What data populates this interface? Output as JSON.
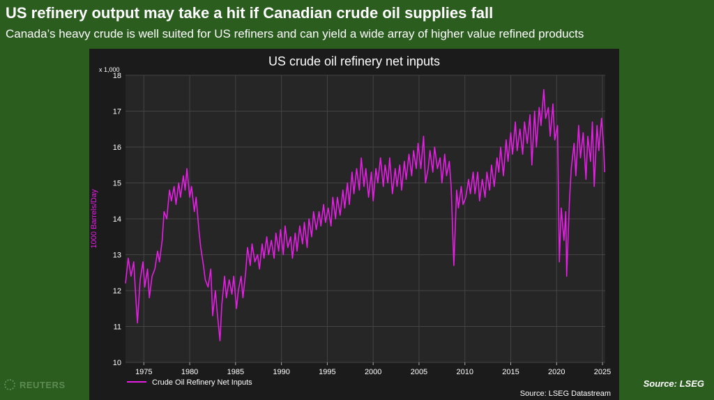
{
  "headline": "US refinery output may take a hit if Canadian crude oil supplies fall",
  "subheadline": "Canada’s heavy crude is well suited for US refiners and can yield a wide array of higher value refined products",
  "credit": "Source: LSEG",
  "watermark": {
    "text": "REUTERS",
    "icon": "reuters-logo-icon"
  },
  "colors": {
    "background": "#2b5d1f",
    "panel": "#1b1b1b",
    "plot": "#262626",
    "series": "#e61ee6"
  },
  "chart_data": {
    "type": "line",
    "title": "US crude oil refinery net inputs",
    "ylabel": "1000 Barrels/Day",
    "y_multiplier": "x 1,000",
    "ylim": [
      10,
      18
    ],
    "xlim": [
      1973,
      2025.3
    ],
    "yticks": [
      10,
      11,
      12,
      13,
      14,
      15,
      16,
      17,
      18
    ],
    "xticks": [
      1975,
      1980,
      1985,
      1990,
      1995,
      2000,
      2005,
      2010,
      2015,
      2020,
      2025
    ],
    "grid": true,
    "legend": {
      "position": "bottom-left"
    },
    "source": "Source: LSEG Datastream",
    "series": [
      {
        "name": "Crude Oil Refinery Net Inputs",
        "color": "#e61ee6",
        "points": [
          [
            1973.0,
            12.2
          ],
          [
            1973.3,
            12.9
          ],
          [
            1973.6,
            12.4
          ],
          [
            1973.9,
            12.8
          ],
          [
            1974.1,
            11.9
          ],
          [
            1974.3,
            11.1
          ],
          [
            1974.6,
            12.3
          ],
          [
            1974.9,
            12.8
          ],
          [
            1975.1,
            12.1
          ],
          [
            1975.4,
            12.6
          ],
          [
            1975.6,
            11.8
          ],
          [
            1975.9,
            12.4
          ],
          [
            1976.2,
            12.6
          ],
          [
            1976.5,
            13.1
          ],
          [
            1976.7,
            12.8
          ],
          [
            1977.0,
            13.4
          ],
          [
            1977.2,
            14.2
          ],
          [
            1977.5,
            14.0
          ],
          [
            1977.8,
            14.8
          ],
          [
            1978.0,
            14.5
          ],
          [
            1978.3,
            14.9
          ],
          [
            1978.5,
            14.4
          ],
          [
            1978.8,
            15.0
          ],
          [
            1979.0,
            14.6
          ],
          [
            1979.3,
            15.2
          ],
          [
            1979.5,
            14.8
          ],
          [
            1979.7,
            15.4
          ],
          [
            1980.0,
            14.6
          ],
          [
            1980.2,
            14.9
          ],
          [
            1980.5,
            14.2
          ],
          [
            1980.7,
            14.6
          ],
          [
            1981.0,
            13.7
          ],
          [
            1981.2,
            13.2
          ],
          [
            1981.5,
            12.7
          ],
          [
            1981.7,
            12.3
          ],
          [
            1982.0,
            12.1
          ],
          [
            1982.3,
            12.6
          ],
          [
            1982.5,
            11.3
          ],
          [
            1982.8,
            12.0
          ],
          [
            1983.0,
            11.4
          ],
          [
            1983.3,
            10.6
          ],
          [
            1983.5,
            11.6
          ],
          [
            1983.8,
            12.4
          ],
          [
            1984.0,
            11.8
          ],
          [
            1984.3,
            12.3
          ],
          [
            1984.6,
            11.9
          ],
          [
            1984.8,
            12.4
          ],
          [
            1985.1,
            11.5
          ],
          [
            1985.3,
            12.0
          ],
          [
            1985.6,
            12.4
          ],
          [
            1985.8,
            11.8
          ],
          [
            1986.1,
            12.5
          ],
          [
            1986.3,
            13.2
          ],
          [
            1986.6,
            12.7
          ],
          [
            1986.8,
            13.3
          ],
          [
            1987.1,
            12.8
          ],
          [
            1987.4,
            13.0
          ],
          [
            1987.6,
            12.6
          ],
          [
            1987.9,
            13.3
          ],
          [
            1988.1,
            12.9
          ],
          [
            1988.4,
            13.5
          ],
          [
            1988.6,
            13.0
          ],
          [
            1988.9,
            13.4
          ],
          [
            1989.2,
            12.9
          ],
          [
            1989.4,
            13.6
          ],
          [
            1989.7,
            13.1
          ],
          [
            1989.9,
            13.7
          ],
          [
            1990.2,
            13.0
          ],
          [
            1990.4,
            13.8
          ],
          [
            1990.7,
            13.2
          ],
          [
            1991.0,
            13.5
          ],
          [
            1991.2,
            12.9
          ],
          [
            1991.5,
            13.6
          ],
          [
            1991.7,
            13.1
          ],
          [
            1992.0,
            13.8
          ],
          [
            1992.3,
            13.3
          ],
          [
            1992.5,
            13.9
          ],
          [
            1992.8,
            13.2
          ],
          [
            1993.0,
            14.0
          ],
          [
            1993.3,
            13.5
          ],
          [
            1993.5,
            14.2
          ],
          [
            1993.8,
            13.7
          ],
          [
            1994.1,
            14.2
          ],
          [
            1994.3,
            13.8
          ],
          [
            1994.6,
            14.4
          ],
          [
            1994.8,
            13.9
          ],
          [
            1995.1,
            14.3
          ],
          [
            1995.4,
            13.8
          ],
          [
            1995.6,
            14.6
          ],
          [
            1995.9,
            14.0
          ],
          [
            1996.1,
            14.6
          ],
          [
            1996.4,
            14.1
          ],
          [
            1996.7,
            14.8
          ],
          [
            1996.9,
            14.3
          ],
          [
            1997.2,
            15.0
          ],
          [
            1997.4,
            14.4
          ],
          [
            1997.7,
            15.3
          ],
          [
            1997.9,
            14.7
          ],
          [
            1998.2,
            15.4
          ],
          [
            1998.5,
            14.8
          ],
          [
            1998.7,
            15.7
          ],
          [
            1999.0,
            14.9
          ],
          [
            1999.2,
            15.4
          ],
          [
            1999.5,
            14.6
          ],
          [
            1999.8,
            15.3
          ],
          [
            2000.0,
            14.5
          ],
          [
            2000.3,
            15.4
          ],
          [
            2000.5,
            15.0
          ],
          [
            2000.8,
            15.7
          ],
          [
            2001.1,
            14.9
          ],
          [
            2001.3,
            15.5
          ],
          [
            2001.6,
            15.0
          ],
          [
            2001.8,
            15.7
          ],
          [
            2002.1,
            14.7
          ],
          [
            2002.4,
            15.4
          ],
          [
            2002.6,
            14.9
          ],
          [
            2002.9,
            15.5
          ],
          [
            2003.1,
            14.8
          ],
          [
            2003.4,
            15.6
          ],
          [
            2003.6,
            15.1
          ],
          [
            2003.9,
            15.8
          ],
          [
            2004.2,
            15.2
          ],
          [
            2004.4,
            15.9
          ],
          [
            2004.7,
            15.4
          ],
          [
            2004.9,
            16.1
          ],
          [
            2005.2,
            15.4
          ],
          [
            2005.5,
            16.3
          ],
          [
            2005.7,
            15.0
          ],
          [
            2006.0,
            15.4
          ],
          [
            2006.2,
            15.9
          ],
          [
            2006.5,
            15.3
          ],
          [
            2006.7,
            16.0
          ],
          [
            2007.0,
            15.4
          ],
          [
            2007.3,
            15.7
          ],
          [
            2007.5,
            15.0
          ],
          [
            2007.8,
            15.8
          ],
          [
            2008.0,
            15.2
          ],
          [
            2008.3,
            15.6
          ],
          [
            2008.5,
            14.9
          ],
          [
            2008.8,
            12.7
          ],
          [
            2009.1,
            14.8
          ],
          [
            2009.3,
            14.3
          ],
          [
            2009.6,
            14.9
          ],
          [
            2009.8,
            14.4
          ],
          [
            2010.1,
            14.6
          ],
          [
            2010.4,
            15.1
          ],
          [
            2010.6,
            14.7
          ],
          [
            2010.9,
            15.3
          ],
          [
            2011.1,
            14.7
          ],
          [
            2011.4,
            15.3
          ],
          [
            2011.6,
            14.5
          ],
          [
            2011.9,
            15.1
          ],
          [
            2012.2,
            14.6
          ],
          [
            2012.4,
            15.3
          ],
          [
            2012.7,
            14.8
          ],
          [
            2012.9,
            15.5
          ],
          [
            2013.2,
            14.9
          ],
          [
            2013.5,
            15.7
          ],
          [
            2013.7,
            15.3
          ],
          [
            2013.9,
            16.0
          ],
          [
            2014.2,
            15.2
          ],
          [
            2014.5,
            16.2
          ],
          [
            2014.7,
            15.6
          ],
          [
            2015.0,
            16.4
          ],
          [
            2015.2,
            15.8
          ],
          [
            2015.5,
            16.7
          ],
          [
            2015.7,
            15.9
          ],
          [
            2016.0,
            16.5
          ],
          [
            2016.3,
            15.8
          ],
          [
            2016.5,
            16.7
          ],
          [
            2016.8,
            16.1
          ],
          [
            2017.1,
            16.9
          ],
          [
            2017.3,
            15.5
          ],
          [
            2017.6,
            17.0
          ],
          [
            2017.8,
            16.0
          ],
          [
            2018.1,
            17.1
          ],
          [
            2018.3,
            16.6
          ],
          [
            2018.6,
            17.6
          ],
          [
            2018.8,
            16.8
          ],
          [
            2019.1,
            17.1
          ],
          [
            2019.3,
            16.3
          ],
          [
            2019.6,
            17.2
          ],
          [
            2019.8,
            16.2
          ],
          [
            2020.1,
            16.6
          ],
          [
            2020.3,
            12.8
          ],
          [
            2020.5,
            14.3
          ],
          [
            2020.8,
            13.4
          ],
          [
            2021.0,
            14.2
          ],
          [
            2021.1,
            12.4
          ],
          [
            2021.4,
            14.5
          ],
          [
            2021.6,
            15.4
          ],
          [
            2021.9,
            16.1
          ],
          [
            2022.1,
            15.2
          ],
          [
            2022.4,
            16.6
          ],
          [
            2022.6,
            15.7
          ],
          [
            2022.9,
            16.4
          ],
          [
            2023.2,
            15.1
          ],
          [
            2023.4,
            16.3
          ],
          [
            2023.7,
            15.6
          ],
          [
            2023.9,
            16.7
          ],
          [
            2024.1,
            14.9
          ],
          [
            2024.4,
            16.6
          ],
          [
            2024.6,
            15.9
          ],
          [
            2024.9,
            16.8
          ],
          [
            2025.1,
            16.1
          ],
          [
            2025.25,
            15.3
          ]
        ]
      }
    ]
  }
}
